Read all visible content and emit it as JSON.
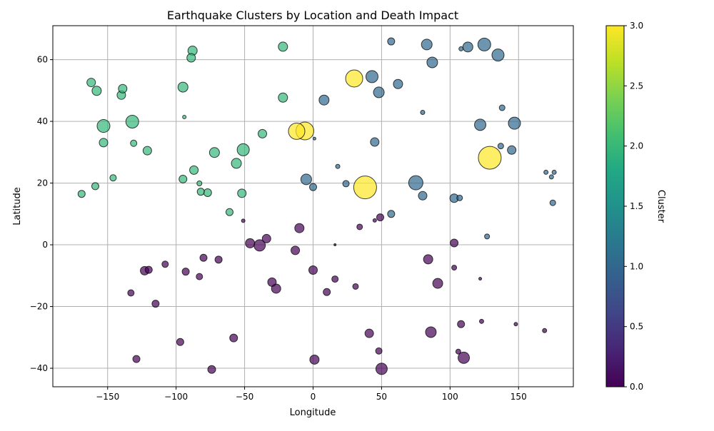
{
  "chart_data": {
    "type": "scatter",
    "title": "Earthquake Clusters by Location and Death Impact",
    "xlabel": "Longitude",
    "ylabel": "Latitude",
    "xlim": [
      -190,
      190
    ],
    "ylim": [
      -46,
      71
    ],
    "xticks": [
      -150,
      -100,
      -50,
      0,
      50,
      100,
      150
    ],
    "yticks": [
      -40,
      -20,
      0,
      20,
      40,
      60
    ],
    "grid": true,
    "colorbar": {
      "label": "Cluster",
      "range": [
        0,
        3
      ],
      "ticks": [
        "0.0",
        "0.5",
        "1.0",
        "1.5",
        "2.0",
        "2.5",
        "3.0"
      ],
      "colormap": "viridis"
    },
    "points_note_columns": [
      "longitude",
      "latitude",
      "cluster",
      "size"
    ],
    "points": [
      [
        -162,
        52.6,
        2,
        6
      ],
      [
        -158,
        49.9,
        2,
        6.5
      ],
      [
        -140,
        48.5,
        2,
        6
      ],
      [
        -139,
        50.6,
        2,
        6
      ],
      [
        -153,
        38.5,
        2,
        9
      ],
      [
        -132,
        39.9,
        2,
        9
      ],
      [
        -153,
        33.1,
        2,
        6
      ],
      [
        -131,
        32.9,
        2,
        4.5
      ],
      [
        -121,
        30.5,
        2,
        6
      ],
      [
        -146,
        21.7,
        2,
        4.5
      ],
      [
        -159,
        19.0,
        2,
        5
      ],
      [
        -169,
        16.5,
        2,
        5
      ],
      [
        -88,
        62.9,
        2,
        6.5
      ],
      [
        -89,
        60.6,
        2,
        6
      ],
      [
        -95,
        51.1,
        2,
        7
      ],
      [
        -94,
        41.4,
        2,
        2.5
      ],
      [
        -72,
        29.9,
        2,
        7
      ],
      [
        -87,
        24.2,
        2,
        6
      ],
      [
        -95,
        21.3,
        2,
        5.5
      ],
      [
        -83,
        19.9,
        2,
        3.5
      ],
      [
        -82,
        17.2,
        2,
        5
      ],
      [
        -77,
        16.9,
        2,
        5.5
      ],
      [
        -56,
        26.4,
        2,
        7
      ],
      [
        -51,
        30.8,
        2,
        8.5
      ],
      [
        -37,
        36.0,
        2,
        6
      ],
      [
        -52,
        16.7,
        2,
        6
      ],
      [
        -61,
        10.6,
        2,
        5
      ],
      [
        -22,
        64.2,
        2,
        6.5
      ],
      [
        -22,
        47.7,
        2,
        6.5
      ],
      [
        -12,
        36.8,
        3,
        11.5
      ],
      [
        -6,
        36.9,
        3,
        12.5
      ],
      [
        30,
        53.9,
        3,
        12
      ],
      [
        38,
        18.6,
        3,
        16
      ],
      [
        129,
        28.2,
        3,
        16
      ],
      [
        57,
        65.9,
        1,
        5
      ],
      [
        83,
        64.9,
        1,
        7.5
      ],
      [
        87,
        59.1,
        1,
        7.5
      ],
      [
        108,
        63.5,
        1,
        3
      ],
      [
        113,
        64.1,
        1,
        7
      ],
      [
        125,
        64.9,
        1,
        9
      ],
      [
        135,
        61.5,
        1,
        8.5
      ],
      [
        43,
        54.5,
        1,
        8.5
      ],
      [
        48,
        49.4,
        1,
        7.5
      ],
      [
        62,
        52.1,
        1,
        6.5
      ],
      [
        8,
        46.9,
        1,
        7
      ],
      [
        80,
        42.9,
        1,
        3
      ],
      [
        138,
        44.4,
        1,
        4
      ],
      [
        122,
        38.9,
        1,
        8
      ],
      [
        147,
        39.4,
        1,
        8.5
      ],
      [
        1,
        34.4,
        1,
        2
      ],
      [
        45,
        33.3,
        1,
        6
      ],
      [
        137,
        32.0,
        1,
        4
      ],
      [
        145,
        30.7,
        1,
        6
      ],
      [
        -5,
        21.2,
        1,
        7.5
      ],
      [
        0,
        18.7,
        1,
        5
      ],
      [
        18,
        25.4,
        1,
        3
      ],
      [
        24,
        19.8,
        1,
        4.5
      ],
      [
        75,
        20.1,
        1,
        10
      ],
      [
        80,
        15.9,
        1,
        6
      ],
      [
        103,
        15.1,
        1,
        6
      ],
      [
        107,
        15.2,
        1,
        4
      ],
      [
        57,
        10.0,
        1,
        5
      ],
      [
        170,
        23.5,
        1,
        3
      ],
      [
        176,
        23.5,
        1,
        3
      ],
      [
        174,
        22.0,
        1,
        3
      ],
      [
        175,
        13.6,
        1,
        4
      ],
      [
        127,
        2.7,
        1,
        3.5
      ],
      [
        -10,
        5.4,
        0,
        6.5
      ],
      [
        -34,
        2.0,
        0,
        6
      ],
      [
        -46,
        0.5,
        0,
        6.5
      ],
      [
        -39,
        -0.2,
        0,
        8
      ],
      [
        -13,
        -1.8,
        0,
        6
      ],
      [
        -51,
        7.8,
        0,
        2.5
      ],
      [
        16,
        0.0,
        0,
        1.5
      ],
      [
        34,
        5.8,
        0,
        4
      ],
      [
        45,
        7.9,
        0,
        2.5
      ],
      [
        49,
        8.9,
        0,
        5
      ],
      [
        103,
        0.6,
        0,
        5.5
      ],
      [
        84,
        -4.7,
        0,
        6.5
      ],
      [
        103,
        -7.4,
        0,
        3.5
      ],
      [
        122,
        -11.0,
        0,
        2
      ],
      [
        91,
        -12.5,
        0,
        7
      ],
      [
        -80,
        -4.2,
        0,
        5
      ],
      [
        -69,
        -4.8,
        0,
        5
      ],
      [
        -108,
        -6.3,
        0,
        4.5
      ],
      [
        -123,
        -8.4,
        0,
        6
      ],
      [
        -120,
        -8.1,
        0,
        5
      ],
      [
        -93,
        -8.7,
        0,
        5
      ],
      [
        -83,
        -10.3,
        0,
        4.5
      ],
      [
        0,
        -8.2,
        0,
        6
      ],
      [
        16,
        -11.1,
        0,
        4.5
      ],
      [
        31,
        -13.5,
        0,
        4
      ],
      [
        10,
        -15.3,
        0,
        5
      ],
      [
        -30,
        -12.1,
        0,
        6
      ],
      [
        -27,
        -14.2,
        0,
        6.5
      ],
      [
        -133,
        -15.6,
        0,
        4.5
      ],
      [
        -115,
        -19.1,
        0,
        5
      ],
      [
        -97,
        -31.5,
        0,
        5
      ],
      [
        -58,
        -30.2,
        0,
        5.5
      ],
      [
        -129,
        -37.0,
        0,
        5
      ],
      [
        -74,
        -40.4,
        0,
        5.5
      ],
      [
        1,
        -37.2,
        0,
        6.5
      ],
      [
        41,
        -28.7,
        0,
        6
      ],
      [
        48,
        -34.4,
        0,
        4.5
      ],
      [
        50,
        -40.2,
        0,
        8
      ],
      [
        86,
        -28.3,
        0,
        7.5
      ],
      [
        108,
        -25.7,
        0,
        5
      ],
      [
        106,
        -34.6,
        0,
        3.5
      ],
      [
        110,
        -36.6,
        0,
        8
      ],
      [
        123,
        -24.8,
        0,
        3
      ],
      [
        148,
        -25.7,
        0,
        2.5
      ],
      [
        169,
        -27.8,
        0,
        3
      ]
    ]
  }
}
